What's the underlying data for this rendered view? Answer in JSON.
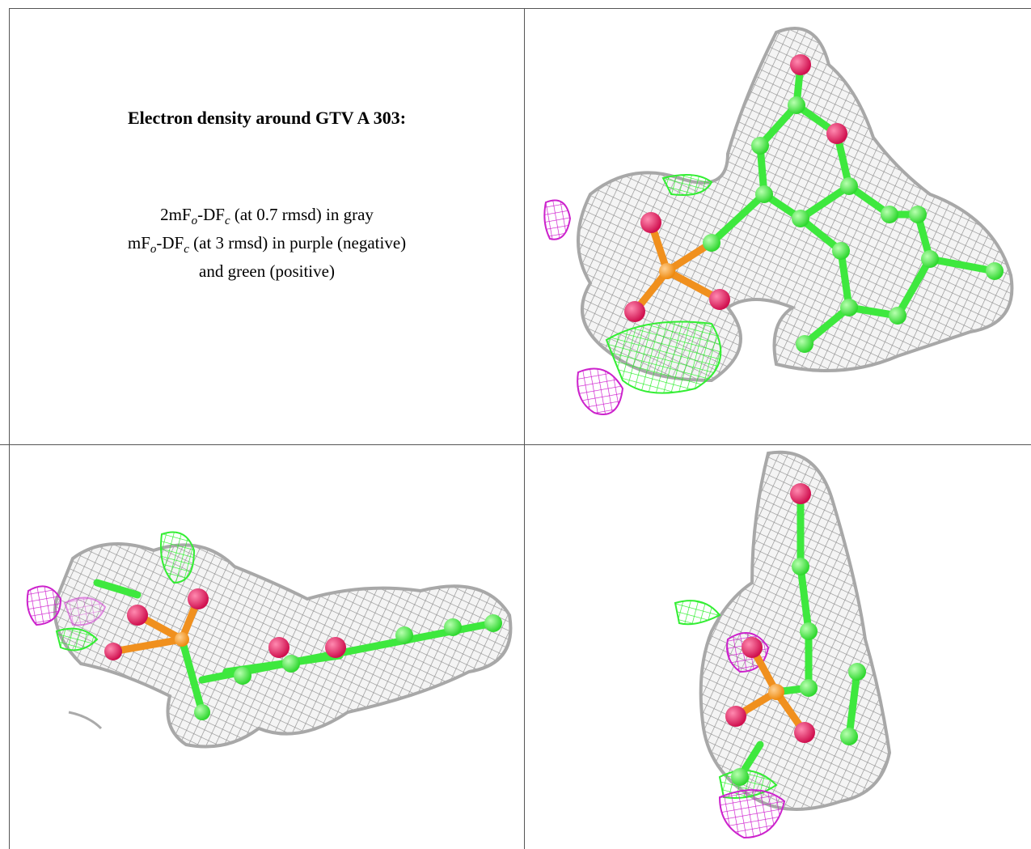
{
  "title": "Electron density around GTV A 303:",
  "caption": {
    "lines": [
      [
        "2mF",
        "o",
        "-DF",
        "c",
        " (at 0.7 rmsd) in gray"
      ],
      [
        "mF",
        "o",
        "-DF",
        "c",
        " (at 3 rmsd) in purple (negative)"
      ],
      [
        "and green (positive)"
      ]
    ]
  }
}
